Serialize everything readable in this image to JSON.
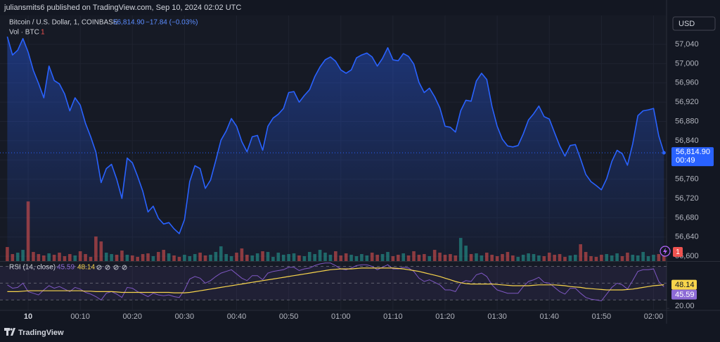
{
  "header": {
    "text": "juliansmits6 published on TradingView.com, Sep 10, 2024 02:02 UTC"
  },
  "currency": "USD",
  "footer": {
    "brand": "TradingView"
  },
  "chart_data": [
    {
      "type": "area",
      "title": "Bitcoin / U.S. Dollar, 1, COINBASE",
      "last_label": "56,814.90",
      "change": "−17.84 (−0.03%)",
      "countdown": "00:49",
      "grid": true,
      "x": [
        -4,
        -3,
        -2,
        -1,
        0,
        1,
        2,
        3,
        4,
        5,
        6,
        7,
        8,
        9,
        10,
        11,
        12,
        13,
        14,
        15,
        16,
        17,
        18,
        19,
        20,
        21,
        22,
        23,
        24,
        25,
        26,
        27,
        28,
        29,
        30,
        31,
        32,
        33,
        34,
        35,
        36,
        37,
        38,
        39,
        40,
        41,
        42,
        43,
        44,
        45,
        46,
        47,
        48,
        49,
        50,
        51,
        52,
        53,
        54,
        55,
        56,
        57,
        58,
        59,
        60,
        61,
        62,
        63,
        64,
        65,
        66,
        67,
        68,
        69,
        70,
        71,
        72,
        73,
        74,
        75,
        76,
        77,
        78,
        79,
        80,
        81,
        82,
        83,
        84,
        85,
        86,
        87,
        88,
        89,
        90,
        91,
        92,
        93,
        94,
        95,
        96,
        97,
        98,
        99,
        100,
        101,
        102,
        103,
        104,
        105,
        106,
        107,
        108,
        109,
        110,
        111,
        112,
        113,
        114,
        115,
        116,
        117,
        118,
        119,
        120,
        121,
        122
      ],
      "xlim": [
        -5.4,
        122.5
      ],
      "xticks": [
        {
          "value": 0,
          "label": "10"
        },
        {
          "value": 10,
          "label": "00:10"
        },
        {
          "value": 20,
          "label": "00:20"
        },
        {
          "value": 30,
          "label": "00:30"
        },
        {
          "value": 40,
          "label": "00:40"
        },
        {
          "value": 50,
          "label": "00:50"
        },
        {
          "value": 60,
          "label": "01:00"
        },
        {
          "value": 70,
          "label": "01:10"
        },
        {
          "value": 80,
          "label": "01:20"
        },
        {
          "value": 90,
          "label": "01:30"
        },
        {
          "value": 100,
          "label": "01:40"
        },
        {
          "value": 110,
          "label": "01:50"
        },
        {
          "value": 120,
          "label": "02:00"
        }
      ],
      "ylim": [
        56590,
        57100
      ],
      "yticks": [
        {
          "value": 56600,
          "label": "56,600"
        },
        {
          "value": 56640,
          "label": "56,640"
        },
        {
          "value": 56680,
          "label": "56,680"
        },
        {
          "value": 56720,
          "label": "56,720"
        },
        {
          "value": 56760,
          "label": "56,760"
        },
        {
          "value": 56800,
          "label": "56,800"
        },
        {
          "value": 56840,
          "label": "56,840"
        },
        {
          "value": 56880,
          "label": "56,880"
        },
        {
          "value": 56920,
          "label": "56,920"
        },
        {
          "value": 56960,
          "label": "56,960"
        },
        {
          "value": 57000,
          "label": "57,000"
        },
        {
          "value": 57040,
          "label": "57,040"
        }
      ],
      "y2lim": [
        0,
        35
      ],
      "series": [
        {
          "name": "Bitcoin / U.S. Dollar, 1, COINBASE",
          "color": "#2962ff",
          "values": [
            57056,
            57018,
            57028,
            57052,
            57024,
            56986,
            56959,
            56929,
            56995,
            56965,
            56958,
            56937,
            56902,
            56929,
            56914,
            56876,
            56848,
            56816,
            56753,
            56782,
            56791,
            56760,
            56720,
            56804,
            56794,
            56766,
            56735,
            56692,
            56704,
            56679,
            56667,
            56670,
            56657,
            56647,
            56676,
            56755,
            56788,
            56782,
            56741,
            56758,
            56799,
            56841,
            56860,
            56886,
            56870,
            56838,
            56817,
            56848,
            56851,
            56820,
            56870,
            56887,
            56895,
            56907,
            56940,
            56942,
            56920,
            56934,
            56946,
            56973,
            56993,
            57008,
            57014,
            57005,
            56987,
            56980,
            56987,
            57012,
            57018,
            57022,
            57014,
            56995,
            57011,
            57033,
            57008,
            57006,
            57021,
            57015,
            56999,
            56961,
            56940,
            56949,
            56931,
            56908,
            56870,
            56868,
            56858,
            56902,
            56924,
            56922,
            56964,
            56980,
            56967,
            56911,
            56870,
            56843,
            56829,
            56827,
            56830,
            56854,
            56883,
            56896,
            56912,
            56890,
            56885,
            56857,
            56829,
            56808,
            56830,
            56832,
            56802,
            56770,
            56755,
            56747,
            56738,
            56761,
            56797,
            56820,
            56813,
            56789,
            56833,
            56892,
            56902,
            56904,
            56907,
            56850,
            56814.9
          ]
        },
        {
          "name": "Vol · BTC",
          "type": "bar",
          "axis": "y2",
          "up_color": "#26a69a",
          "down_color": "#ef5350",
          "values": [
            2.0,
            1.0,
            1.2,
            1.6,
            8.5,
            1.3,
            1.0,
            0.8,
            1.1,
            0.9,
            1.2,
            0.7,
            1.0,
            0.8,
            1.4,
            1.0,
            0.6,
            3.5,
            2.8,
            1.2,
            1.0,
            0.9,
            1.5,
            0.9,
            0.8,
            0.6,
            1.0,
            1.1,
            0.7,
            1.3,
            1.6,
            1.1,
            0.8,
            0.6,
            0.9,
            0.7,
            1.0,
            1.2,
            0.8,
            0.9,
            1.3,
            2.1,
            1.0,
            0.7,
            1.2,
            1.8,
            0.9,
            0.8,
            1.1,
            1.4,
            1.3,
            0.6,
            1.2,
            0.9,
            1.0,
            1.1,
            0.8,
            0.7,
            1.3,
            1.0,
            1.6,
            1.2,
            0.9,
            1.4,
            0.8,
            1.1,
            0.9,
            0.7,
            1.0,
            0.8,
            1.2,
            0.9,
            1.0,
            1.3,
            0.7,
            0.9,
            1.1,
            0.8,
            1.4,
            0.9,
            1.0,
            0.7,
            1.6,
            1.2,
            0.9,
            1.0,
            0.8,
            3.3,
            2.2,
            1.0,
            1.1,
            0.8,
            1.2,
            0.9,
            0.7,
            1.0,
            1.3,
            0.8,
            0.6,
            0.9,
            1.1,
            1.0,
            0.8,
            0.7,
            1.2,
            0.9,
            1.0,
            0.6,
            0.8,
            0.9,
            2.4,
            1.3,
            0.7,
            0.6,
            0.9,
            1.0,
            0.8,
            1.1,
            0.7,
            1.2,
            0.9,
            0.8,
            1.3,
            0.7,
            0.9,
            1.0,
            1
          ]
        }
      ]
    },
    {
      "type": "line",
      "title": "RSI (14, close)",
      "x": [
        -4,
        -3,
        -2,
        -1,
        0,
        1,
        2,
        3,
        4,
        5,
        6,
        7,
        8,
        9,
        10,
        11,
        12,
        13,
        14,
        15,
        16,
        17,
        18,
        19,
        20,
        21,
        22,
        23,
        24,
        25,
        26,
        27,
        28,
        29,
        30,
        31,
        32,
        33,
        34,
        35,
        36,
        37,
        38,
        39,
        40,
        41,
        42,
        43,
        44,
        45,
        46,
        47,
        48,
        49,
        50,
        51,
        52,
        53,
        54,
        55,
        56,
        57,
        58,
        59,
        60,
        61,
        62,
        63,
        64,
        65,
        66,
        67,
        68,
        69,
        70,
        71,
        72,
        73,
        74,
        75,
        76,
        77,
        78,
        79,
        80,
        81,
        82,
        83,
        84,
        85,
        86,
        87,
        88,
        89,
        90,
        91,
        92,
        93,
        94,
        95,
        96,
        97,
        98,
        99,
        100,
        101,
        102,
        103,
        104,
        105,
        106,
        107,
        108,
        109,
        110,
        111,
        112,
        113,
        114,
        115,
        116,
        117,
        118,
        119,
        120,
        121,
        122
      ],
      "xlim": [
        -5.4,
        122.5
      ],
      "ylim": [
        18.5,
        75.5
      ],
      "yticks": [
        {
          "value": 20,
          "label": "20.00"
        }
      ],
      "levels": [
        70,
        50,
        30
      ],
      "band_color": "#7e57c2",
      "series": [
        {
          "color": "#7e57c2",
          "label_color": "#8d6ad6",
          "values": [
            48,
            44,
            45,
            50,
            40,
            38,
            36,
            42,
            47,
            44,
            46,
            43,
            40,
            45,
            43,
            39,
            37,
            34,
            30,
            38,
            40,
            37,
            33,
            45,
            44,
            40,
            37,
            34,
            38,
            36,
            35,
            36,
            34,
            33,
            42,
            55,
            58,
            56,
            50,
            53,
            58,
            62,
            64,
            66,
            61,
            56,
            53,
            59,
            59,
            54,
            62,
            64,
            65,
            66,
            69,
            69,
            65,
            67,
            68,
            71,
            73,
            74,
            74,
            71,
            67,
            66,
            68,
            71,
            72,
            72,
            70,
            66,
            69,
            72,
            67,
            67,
            69,
            68,
            64,
            56,
            52,
            54,
            51,
            48,
            42,
            42,
            40,
            50,
            53,
            52,
            60,
            62,
            58,
            48,
            42,
            40,
            38,
            38,
            38,
            46,
            52,
            54,
            57,
            51,
            50,
            45,
            40,
            37,
            44,
            44,
            38,
            33,
            31,
            30,
            29,
            37,
            45,
            50,
            48,
            43,
            53,
            64,
            66,
            66,
            67,
            52,
            45.59
          ]
        },
        {
          "color": "#f7d44c",
          "label_color": "#f7d44c",
          "values": [
            40,
            40,
            40,
            40.5,
            41,
            41,
            41,
            41,
            41,
            41,
            41,
            41,
            41,
            41,
            41,
            40.5,
            40.5,
            40,
            40,
            40,
            40,
            39.5,
            39,
            39,
            39,
            39,
            39,
            39,
            39,
            39,
            39,
            39,
            38.5,
            38.5,
            38.5,
            39,
            40,
            41,
            42,
            43,
            44,
            45,
            46,
            47,
            48,
            49,
            50,
            51,
            52,
            53,
            54,
            55,
            56,
            57,
            58,
            59,
            60,
            61,
            62,
            63,
            64,
            65,
            66,
            66.5,
            67,
            67,
            67,
            67.5,
            68,
            68,
            68,
            68,
            68,
            68,
            68,
            67.5,
            67,
            66,
            65,
            64,
            62.5,
            61,
            59.5,
            58,
            56,
            54,
            52,
            50.5,
            49.5,
            49,
            49,
            49,
            49,
            49,
            48.5,
            48,
            47.5,
            47,
            47,
            47,
            47,
            47.5,
            48,
            48,
            48,
            48,
            47.5,
            47,
            46,
            45.5,
            45,
            44,
            43.5,
            43,
            42.5,
            42,
            42,
            42,
            42,
            42.5,
            43,
            44,
            45,
            46,
            47,
            47.5,
            48.14
          ]
        }
      ]
    }
  ]
}
